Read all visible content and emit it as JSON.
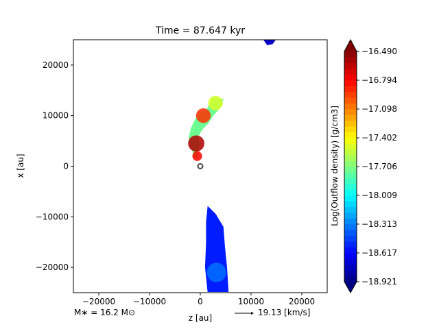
{
  "chart_data": {
    "type": "heatmap",
    "title": "Time = 87.647 kyr",
    "xlabel": "z [au]",
    "ylabel": "x [au]",
    "xlim": [
      -25000,
      25000
    ],
    "ylim": [
      -25000,
      25000
    ],
    "xticks": [
      -20000,
      -10000,
      0,
      10000,
      20000
    ],
    "xtick_labels": [
      "−20000",
      "−10000",
      "0",
      "10000",
      "20000"
    ],
    "yticks": [
      20000,
      10000,
      0,
      -10000,
      -20000
    ],
    "ytick_labels": [
      "20000",
      "10000",
      "0",
      "−10000",
      "−20000"
    ],
    "grid": false,
    "colorbar": {
      "label": "Log(Outflow density) [g/cm3]",
      "min": -18.921,
      "max": -16.49,
      "ticks": [
        -16.49,
        -16.794,
        -17.098,
        -17.402,
        -17.706,
        -18.009,
        -18.313,
        -18.617,
        -18.921
      ],
      "tick_labels": [
        "−16.490",
        "−16.794",
        "−17.098",
        "−17.402",
        "−17.706",
        "−18.009",
        "−18.313",
        "−18.617",
        "−18.921"
      ],
      "colormap": "jet",
      "extend": "both"
    },
    "star_marker": {
      "z": 0,
      "x": 0
    },
    "regions": [
      {
        "name": "upper-outflow",
        "outline": [
          [
            1200,
            11000
          ],
          [
            2500,
            13500
          ],
          [
            4500,
            13200
          ],
          [
            3800,
            11500
          ],
          [
            2500,
            10000
          ],
          [
            1500,
            8500
          ],
          [
            300,
            7200
          ],
          [
            -500,
            5800
          ],
          [
            -200,
            4500
          ],
          [
            -500,
            3000
          ],
          [
            -400,
            1500
          ],
          [
            -1200,
            1500
          ],
          [
            -1500,
            3000
          ],
          [
            -2000,
            4200
          ],
          [
            -2200,
            5800
          ],
          [
            -1800,
            7500
          ],
          [
            -1000,
            9200
          ],
          [
            0,
            10500
          ]
        ],
        "level": -17.75
      },
      {
        "name": "lower-outflow",
        "outline": [
          [
            1500,
            -8000
          ],
          [
            3000,
            -9500
          ],
          [
            4500,
            -12000
          ],
          [
            4800,
            -16000
          ],
          [
            5200,
            -20000
          ],
          [
            5500,
            -24800
          ],
          [
            1500,
            -24800
          ],
          [
            1000,
            -20000
          ],
          [
            1200,
            -15000
          ],
          [
            1200,
            -11000
          ]
        ],
        "level": -18.55
      },
      {
        "name": "top-edge-blob",
        "outline": [
          [
            12500,
            25000
          ],
          [
            13200,
            24000
          ],
          [
            14200,
            24200
          ],
          [
            14800,
            25000
          ]
        ],
        "level": -18.75
      }
    ],
    "hotspots": [
      {
        "z": 600,
        "x": 10000,
        "radius": 900,
        "level": -16.9
      },
      {
        "z": -800,
        "x": 4500,
        "radius": 1000,
        "level": -16.6
      },
      {
        "z": -600,
        "x": 2000,
        "radius": 600,
        "level": -16.8
      },
      {
        "z": 3000,
        "x": 12500,
        "radius": 900,
        "level": -17.5
      },
      {
        "z": 3200,
        "x": -21000,
        "radius": 1200,
        "level": -18.35
      }
    ],
    "annotations": {
      "stellar_mass": "M∗ = 16.2 M⊙",
      "velocity_scale": "19.13 [km/s]"
    }
  }
}
